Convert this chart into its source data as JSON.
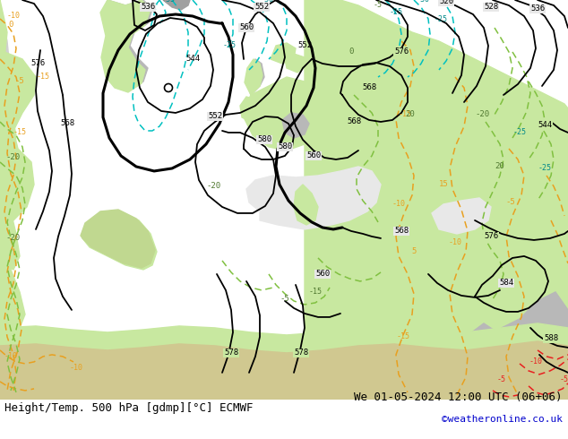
{
  "title_left": "Height/Temp. 500 hPa [gdmp][°C] ECMWF",
  "title_right": "We 01-05-2024 12:00 UTC (06+06)",
  "credit": "©weatheronline.co.uk",
  "bg_color": "#e8e8e8",
  "land_green_color": "#c8e8a0",
  "land_gray_color": "#b8b8b8",
  "ocean_color": "#e8e8e8",
  "height_contour_color": "#000000",
  "temp_orange_color": "#e8a020",
  "temp_red_color": "#e82020",
  "temp_cyan_color": "#00c0c0",
  "temp_green_color": "#80c040",
  "figure_width": 6.34,
  "figure_height": 4.9,
  "dpi": 100,
  "title_fontsize": 9,
  "credit_fontsize": 8,
  "credit_color": "#0000cc",
  "label_fontsize": 6.5
}
